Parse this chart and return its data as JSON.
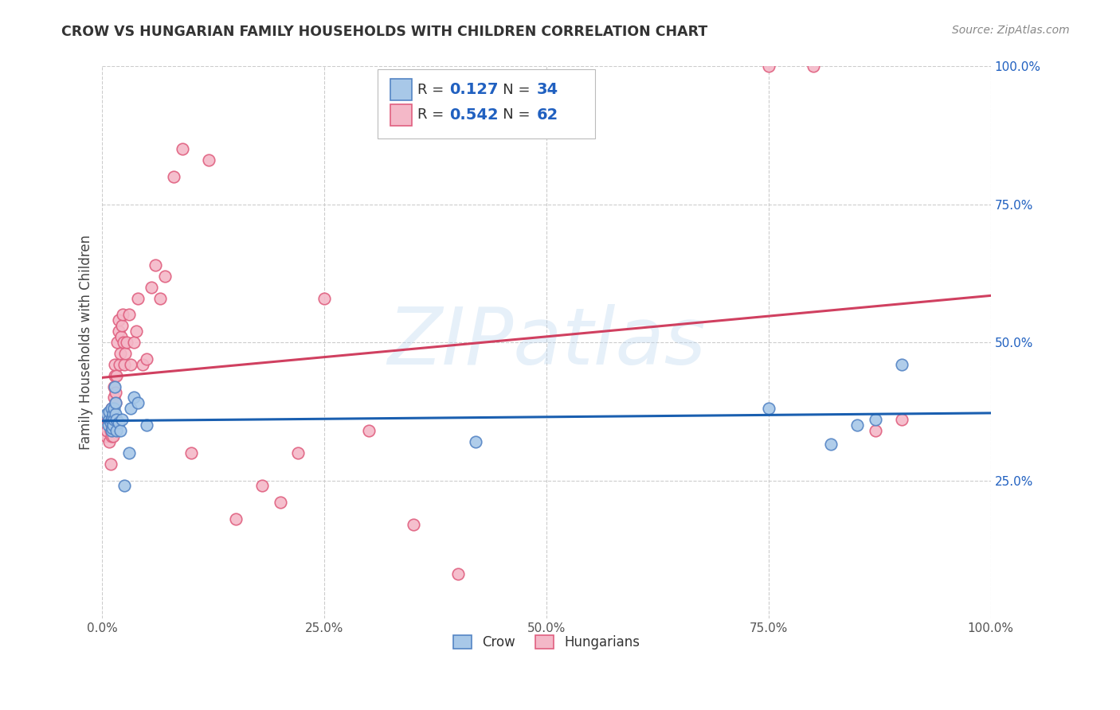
{
  "title": "CROW VS HUNGARIAN FAMILY HOUSEHOLDS WITH CHILDREN CORRELATION CHART",
  "source": "Source: ZipAtlas.com",
  "ylabel": "Family Households with Children",
  "watermark": "ZIPatlas",
  "crow_R": 0.127,
  "crow_N": 34,
  "hung_R": 0.542,
  "hung_N": 62,
  "xlim": [
    0.0,
    1.0
  ],
  "ylim": [
    0.0,
    1.0
  ],
  "xticks": [
    0.0,
    0.25,
    0.5,
    0.75,
    1.0
  ],
  "yticks": [
    0.25,
    0.5,
    0.75,
    1.0
  ],
  "xticklabels": [
    "0.0%",
    "25.0%",
    "50.0%",
    "75.0%",
    "100.0%"
  ],
  "right_yticklabels": [
    "25.0%",
    "50.0%",
    "75.0%",
    "100.0%"
  ],
  "crow_color": "#a8c8e8",
  "hung_color": "#f4b8c8",
  "crow_edge_color": "#5585c5",
  "hung_edge_color": "#e06080",
  "crow_line_color": "#1a5fb0",
  "hung_line_color": "#d04060",
  "background_color": "#ffffff",
  "grid_color": "#cccccc",
  "title_color": "#333333",
  "right_tick_color": "#2060c0",
  "source_color": "#888888",
  "crow_x": [
    0.005,
    0.007,
    0.008,
    0.008,
    0.009,
    0.01,
    0.01,
    0.01,
    0.011,
    0.011,
    0.012,
    0.012,
    0.013,
    0.013,
    0.014,
    0.015,
    0.015,
    0.016,
    0.016,
    0.018,
    0.02,
    0.022,
    0.025,
    0.03,
    0.032,
    0.035,
    0.04,
    0.05,
    0.42,
    0.75,
    0.82,
    0.85,
    0.87,
    0.9
  ],
  "crow_y": [
    0.37,
    0.35,
    0.36,
    0.375,
    0.355,
    0.34,
    0.36,
    0.38,
    0.345,
    0.365,
    0.35,
    0.37,
    0.36,
    0.38,
    0.42,
    0.37,
    0.39,
    0.36,
    0.34,
    0.355,
    0.34,
    0.36,
    0.24,
    0.3,
    0.38,
    0.4,
    0.39,
    0.35,
    0.32,
    0.38,
    0.315,
    0.35,
    0.36,
    0.46
  ],
  "hung_x": [
    0.004,
    0.005,
    0.006,
    0.007,
    0.007,
    0.008,
    0.008,
    0.009,
    0.009,
    0.01,
    0.01,
    0.01,
    0.011,
    0.011,
    0.012,
    0.012,
    0.013,
    0.013,
    0.014,
    0.014,
    0.015,
    0.015,
    0.016,
    0.017,
    0.018,
    0.018,
    0.019,
    0.02,
    0.021,
    0.022,
    0.023,
    0.024,
    0.025,
    0.026,
    0.027,
    0.03,
    0.032,
    0.035,
    0.038,
    0.04,
    0.045,
    0.05,
    0.055,
    0.06,
    0.065,
    0.07,
    0.08,
    0.09,
    0.1,
    0.12,
    0.15,
    0.18,
    0.2,
    0.22,
    0.25,
    0.3,
    0.35,
    0.4,
    0.75,
    0.8,
    0.87,
    0.9
  ],
  "hung_y": [
    0.33,
    0.34,
    0.36,
    0.355,
    0.37,
    0.32,
    0.36,
    0.34,
    0.28,
    0.33,
    0.36,
    0.38,
    0.34,
    0.36,
    0.33,
    0.35,
    0.4,
    0.42,
    0.44,
    0.46,
    0.39,
    0.41,
    0.44,
    0.5,
    0.52,
    0.54,
    0.46,
    0.48,
    0.51,
    0.53,
    0.55,
    0.5,
    0.46,
    0.48,
    0.5,
    0.55,
    0.46,
    0.5,
    0.52,
    0.58,
    0.46,
    0.47,
    0.6,
    0.64,
    0.58,
    0.62,
    0.8,
    0.85,
    0.3,
    0.83,
    0.18,
    0.24,
    0.21,
    0.3,
    0.58,
    0.34,
    0.17,
    0.08,
    1.0,
    1.0,
    0.34,
    0.36
  ]
}
